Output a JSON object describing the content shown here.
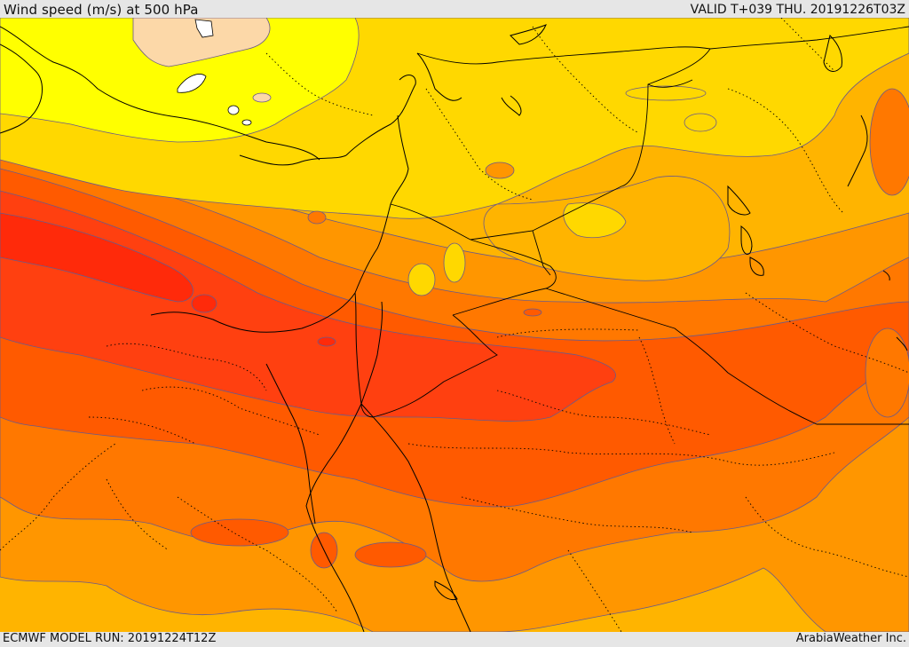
{
  "header": {
    "title": "Wind speed (m/s) at 500 hPa",
    "valid": "VALID T+039 THU. 20191226T03Z"
  },
  "footer": {
    "model_run": "ECMWF MODEL RUN: 20191224T12Z",
    "credit": "ArabiaWeather Inc."
  },
  "colors": {
    "pale_peach": "#fcd8a8",
    "yellow": "#ffff00",
    "gold": "#ffd800",
    "amber": "#ffb400",
    "orange": "#ff9600",
    "dark_orange": "#ff7800",
    "red_orange": "#ff5a00",
    "orange_red": "#ff4010",
    "red": "#ff2a0a",
    "contour": "#6a5a8a",
    "border": "#000000"
  }
}
